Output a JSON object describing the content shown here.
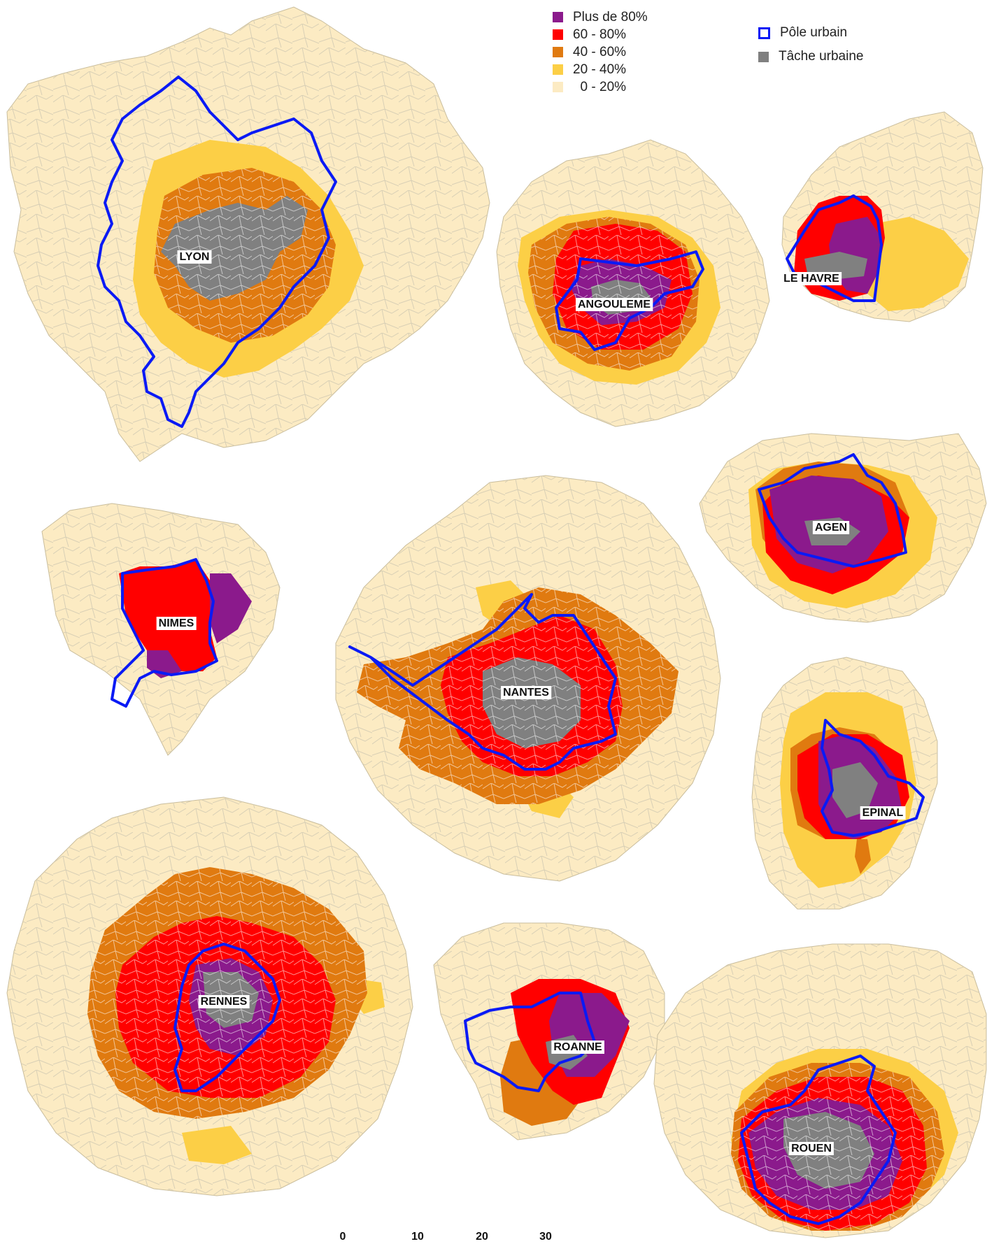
{
  "legend": {
    "classes": [
      {
        "label": "Plus de 80%",
        "color": "#8B1A8C"
      },
      {
        "label": "60 - 80%",
        "color": "#FF0000"
      },
      {
        "label": "40 - 60%",
        "color": "#E07A10"
      },
      {
        "label": "20 - 40%",
        "color": "#FCCF46"
      },
      {
        "label": "  0 - 20%",
        "color": "#FCEBC3"
      }
    ],
    "pole_urbain": {
      "label": "Pôle urbain",
      "color": "#0A1AF5"
    },
    "tache_urbaine": {
      "label": "Tâche urbaine",
      "color": "#808080"
    }
  },
  "cities": [
    {
      "name": "LYON"
    },
    {
      "name": "ANGOULEME"
    },
    {
      "name": "LE HAVRE"
    },
    {
      "name": "AGEN"
    },
    {
      "name": "NIMES"
    },
    {
      "name": "NANTES"
    },
    {
      "name": "EPINAL"
    },
    {
      "name": "RENNES"
    },
    {
      "name": "ROANNE"
    },
    {
      "name": "ROUEN"
    }
  ],
  "scale_bar": {
    "ticks": [
      "0",
      "10",
      "20",
      "30"
    ]
  }
}
